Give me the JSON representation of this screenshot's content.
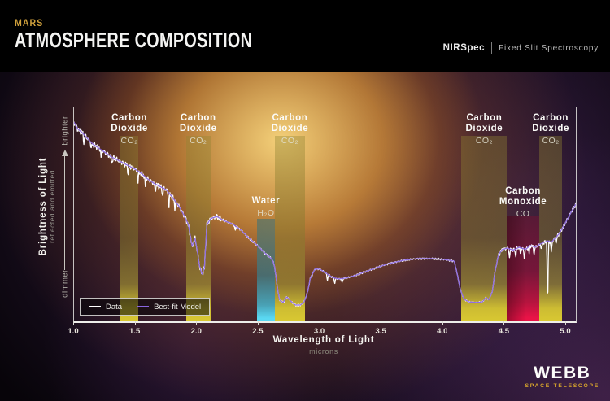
{
  "header": {
    "kicker": "MARS",
    "title": "ATMOSPHERE COMPOSITION",
    "instrument": "NIRSpec",
    "mode": "Fixed Slit Spectroscopy"
  },
  "branding": {
    "logo": "WEBB",
    "sub": "SPACE TELESCOPE"
  },
  "colors": {
    "kicker_gold": "#cfa03c",
    "webb_gold": "#d8a62c",
    "co2_band": "#d9c832",
    "h2o_band": "#5ad8f2",
    "co_band": "#ea1347",
    "data_line": "#ffffff",
    "model_line": "#8a66e0",
    "background": "#000000"
  },
  "chart_data": {
    "type": "line",
    "title": "",
    "xlabel": "Wavelength of Light",
    "xlabel_unit": "microns",
    "ylabel": "Brightness of Light",
    "ylabel_sub": "reflected and emitted",
    "y_direction_top": "brighter",
    "y_direction_bottom": "dimmer",
    "y_units": "relative brightness (0 = axis baseline, 1 = top of plot)",
    "xlim": [
      1.0,
      5.08
    ],
    "x_tick_labels": [
      "1.0",
      "1.5",
      "2.0",
      "2.5",
      "3.0",
      "3.5",
      "4.0",
      "4.5",
      "5.0"
    ],
    "x_tick_values": [
      1.0,
      1.5,
      2.0,
      2.5,
      3.0,
      3.5,
      4.0,
      4.5,
      5.0
    ],
    "grid": false,
    "legend_position": "bottom-left",
    "legend": [
      {
        "label": "Data",
        "color": "#ffffff"
      },
      {
        "label": "Best-fit Model",
        "color": "#8a66e0"
      }
    ],
    "bands": [
      {
        "molecule": "Carbon Dioxide",
        "name_lines": [
          "Carbon",
          "Dioxide"
        ],
        "formula": "CO₂",
        "type": "co2",
        "range_microns": [
          1.38,
          1.52
        ]
      },
      {
        "molecule": "Carbon Dioxide",
        "name_lines": [
          "Carbon",
          "Dioxide"
        ],
        "formula": "CO₂",
        "type": "co2",
        "range_microns": [
          1.91,
          2.11
        ]
      },
      {
        "molecule": "Water",
        "name_lines": [
          "Water"
        ],
        "formula": "H₂O",
        "type": "h2o",
        "range_microns": [
          2.49,
          2.63
        ]
      },
      {
        "molecule": "Carbon Dioxide",
        "name_lines": [
          "Carbon",
          "Dioxide"
        ],
        "formula": "CO₂",
        "type": "co2",
        "range_microns": [
          2.63,
          2.88
        ]
      },
      {
        "molecule": "Carbon Dioxide",
        "name_lines": [
          "Carbon",
          "Dioxide"
        ],
        "formula": "CO₂",
        "type": "co2",
        "range_microns": [
          4.15,
          4.52
        ]
      },
      {
        "molecule": "Carbon Monoxide",
        "name_lines": [
          "Carbon",
          "Monoxide"
        ],
        "formula": "CO",
        "type": "co",
        "range_microns": [
          4.52,
          4.78
        ]
      },
      {
        "molecule": "Carbon Dioxide",
        "name_lines": [
          "Carbon",
          "Dioxide"
        ],
        "formula": "CO₂",
        "type": "co2",
        "range_microns": [
          4.78,
          4.97
        ]
      }
    ],
    "series": [
      {
        "name": "Best-fit Model",
        "color": "#8a66e0",
        "style": "smooth",
        "points": [
          [
            1.0,
            0.93
          ],
          [
            1.03,
            0.9
          ],
          [
            1.07,
            0.88
          ],
          [
            1.1,
            0.86
          ],
          [
            1.15,
            0.83
          ],
          [
            1.2,
            0.81
          ],
          [
            1.25,
            0.79
          ],
          [
            1.3,
            0.77
          ],
          [
            1.35,
            0.755
          ],
          [
            1.4,
            0.74
          ],
          [
            1.45,
            0.725
          ],
          [
            1.5,
            0.71
          ],
          [
            1.55,
            0.69
          ],
          [
            1.6,
            0.665
          ],
          [
            1.65,
            0.645
          ],
          [
            1.7,
            0.63
          ],
          [
            1.75,
            0.615
          ],
          [
            1.8,
            0.58
          ],
          [
            1.85,
            0.54
          ],
          [
            1.9,
            0.49
          ],
          [
            1.93,
            0.45
          ],
          [
            1.96,
            0.35
          ],
          [
            1.985,
            0.39
          ],
          [
            2.02,
            0.26
          ],
          [
            2.04,
            0.22
          ],
          [
            2.06,
            0.25
          ],
          [
            2.08,
            0.45
          ],
          [
            2.11,
            0.48
          ],
          [
            2.16,
            0.49
          ],
          [
            2.22,
            0.47
          ],
          [
            2.29,
            0.455
          ],
          [
            2.36,
            0.425
          ],
          [
            2.42,
            0.39
          ],
          [
            2.49,
            0.355
          ],
          [
            2.55,
            0.32
          ],
          [
            2.61,
            0.29
          ],
          [
            2.63,
            0.26
          ],
          [
            2.65,
            0.17
          ],
          [
            2.67,
            0.1
          ],
          [
            2.7,
            0.088
          ],
          [
            2.73,
            0.115
          ],
          [
            2.76,
            0.095
          ],
          [
            2.8,
            0.076
          ],
          [
            2.84,
            0.076
          ],
          [
            2.87,
            0.09
          ],
          [
            2.9,
            0.14
          ],
          [
            2.92,
            0.2
          ],
          [
            2.96,
            0.245
          ],
          [
            3.0,
            0.243
          ],
          [
            3.05,
            0.225
          ],
          [
            3.1,
            0.205
          ],
          [
            3.15,
            0.198
          ],
          [
            3.21,
            0.202
          ],
          [
            3.28,
            0.213
          ],
          [
            3.37,
            0.232
          ],
          [
            3.46,
            0.251
          ],
          [
            3.56,
            0.27
          ],
          [
            3.68,
            0.285
          ],
          [
            3.79,
            0.293
          ],
          [
            3.91,
            0.293
          ],
          [
            4.01,
            0.289
          ],
          [
            4.09,
            0.281
          ],
          [
            4.11,
            0.235
          ],
          [
            4.14,
            0.15
          ],
          [
            4.17,
            0.103
          ],
          [
            4.21,
            0.091
          ],
          [
            4.27,
            0.088
          ],
          [
            4.32,
            0.091
          ],
          [
            4.35,
            0.112
          ],
          [
            4.37,
            0.099
          ],
          [
            4.4,
            0.137
          ],
          [
            4.42,
            0.224
          ],
          [
            4.45,
            0.31
          ],
          [
            4.48,
            0.335
          ],
          [
            4.52,
            0.342
          ],
          [
            4.57,
            0.333
          ],
          [
            4.62,
            0.346
          ],
          [
            4.67,
            0.336
          ],
          [
            4.71,
            0.354
          ],
          [
            4.75,
            0.347
          ],
          [
            4.79,
            0.361
          ],
          [
            4.82,
            0.369
          ],
          [
            4.85,
            0.376
          ],
          [
            4.88,
            0.37
          ],
          [
            4.91,
            0.388
          ],
          [
            4.94,
            0.407
          ],
          [
            4.98,
            0.445
          ],
          [
            5.02,
            0.487
          ],
          [
            5.05,
            0.52
          ],
          [
            5.08,
            0.548
          ]
        ]
      },
      {
        "name": "Data",
        "color": "#ffffff",
        "style": "noisy",
        "derived_from": "Best-fit Model",
        "noise_regions": [
          {
            "range": [
              1.0,
              2.2
            ],
            "amplitude": 0.016
          },
          {
            "range": [
              2.2,
              2.95
            ],
            "amplitude": 0.006
          },
          {
            "range": [
              2.95,
              4.08
            ],
            "amplitude": 0.005
          },
          {
            "range": [
              4.08,
              4.45
            ],
            "amplitude": 0.004
          },
          {
            "range": [
              4.45,
              5.08
            ],
            "amplitude": 0.011
          }
        ],
        "absorption_spikes": [
          [
            1.08,
            0.04
          ],
          [
            1.14,
            0.03
          ],
          [
            1.22,
            0.035
          ],
          [
            1.31,
            0.03
          ],
          [
            1.44,
            0.04
          ],
          [
            1.52,
            0.05
          ],
          [
            1.58,
            0.04
          ],
          [
            1.66,
            0.035
          ],
          [
            1.72,
            0.04
          ],
          [
            1.77,
            0.07
          ],
          [
            1.82,
            0.035
          ],
          [
            2.31,
            0.02
          ],
          [
            3.06,
            0.03
          ],
          [
            3.12,
            0.025
          ],
          [
            3.18,
            0.02
          ],
          [
            4.54,
            0.04
          ],
          [
            4.59,
            0.035
          ],
          [
            4.63,
            0.03
          ],
          [
            4.66,
            0.045
          ],
          [
            4.7,
            0.03
          ],
          [
            4.74,
            0.035
          ],
          [
            4.8,
            0.03
          ],
          [
            4.85,
            0.29
          ],
          [
            4.88,
            0.045
          ],
          [
            4.92,
            0.03
          ]
        ]
      }
    ]
  }
}
